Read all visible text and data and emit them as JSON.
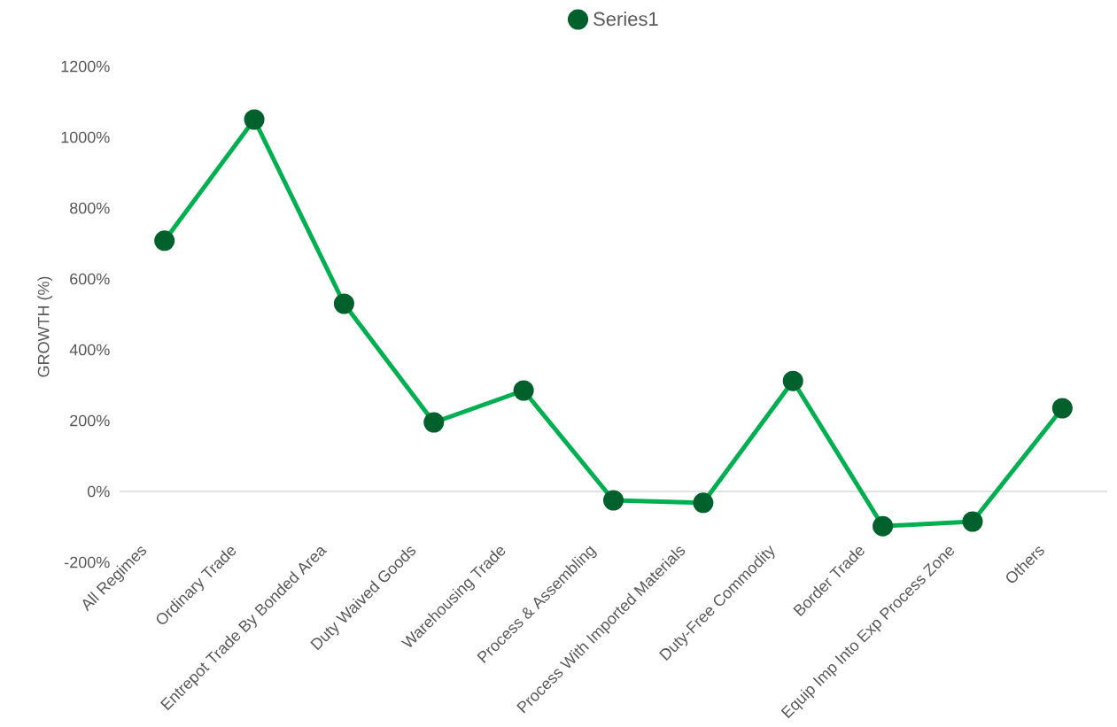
{
  "chart_data": {
    "type": "line",
    "ylabel": "GROWTH (%)",
    "categories": [
      "All Regimes",
      "Ordinary Trade",
      "Entrepot Trade By Bonded Area",
      "Duty Waived Goods",
      "Warehousing Trade",
      "Process & Assembling",
      "Process With Imported Materials",
      "Duty-Free Commodity",
      "Border Trade",
      "Equip Imp Into Exp Process Zone",
      "Others"
    ],
    "series": [
      {
        "name": "Series1",
        "color": "#00b050",
        "values": [
          708,
          1050,
          530,
          195,
          285,
          -25,
          -32,
          312,
          -98,
          -85,
          235
        ]
      }
    ],
    "ylim": [
      -200,
      1200
    ],
    "yticks": [
      {
        "value": -200,
        "label": "-200%"
      },
      {
        "value": 0,
        "label": "0%"
      },
      {
        "value": 200,
        "label": "200%"
      },
      {
        "value": 400,
        "label": "400%"
      },
      {
        "value": 600,
        "label": "600%"
      },
      {
        "value": 800,
        "label": "800%"
      },
      {
        "value": 1000,
        "label": "1000%"
      },
      {
        "value": 1200,
        "label": "1200%"
      }
    ],
    "legend": "top",
    "marker": "circle",
    "line_style": "solid"
  }
}
